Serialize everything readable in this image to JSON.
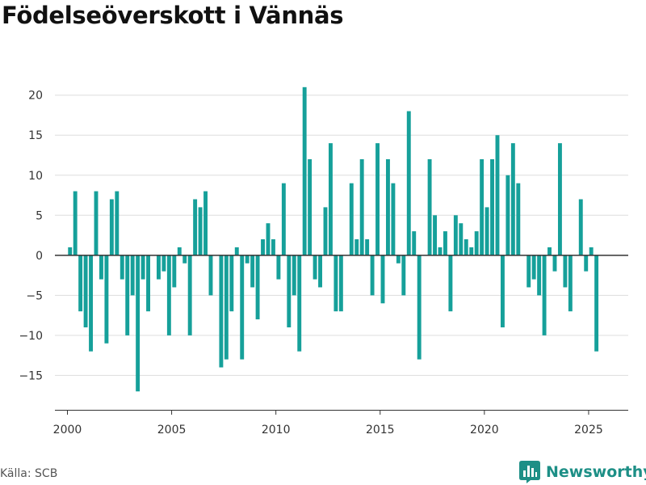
{
  "title": "Födelseöverskott i Vännäs",
  "source": "Källa: SCB",
  "brand": {
    "name": "Newsworthy",
    "logo_icon": "bar-chart-logo-icon"
  },
  "colors": {
    "bar": "#16a09a",
    "grid": "#dddddd",
    "zero": "#333333",
    "axis": "#333333",
    "brand": "#1d8f86"
  },
  "chart_data": {
    "type": "bar",
    "xlim": [
      1999.4,
      2026.9
    ],
    "ylim": [
      -19.3,
      23
    ],
    "xticks": [
      2000,
      2005,
      2010,
      2015,
      2020,
      2025
    ],
    "yticks": [
      -15,
      -10,
      -5,
      0,
      5,
      10,
      15,
      20
    ],
    "grid": true,
    "bar_width_years": 0.19,
    "x": [
      2000.125,
      2000.375,
      2000.625,
      2000.875,
      2001.125,
      2001.375,
      2001.625,
      2001.875,
      2002.125,
      2002.375,
      2002.625,
      2002.875,
      2003.125,
      2003.375,
      2003.625,
      2003.875,
      2004.125,
      2004.375,
      2004.625,
      2004.875,
      2005.125,
      2005.375,
      2005.625,
      2005.875,
      2006.125,
      2006.375,
      2006.625,
      2006.875,
      2007.125,
      2007.375,
      2007.625,
      2007.875,
      2008.125,
      2008.375,
      2008.625,
      2008.875,
      2009.125,
      2009.375,
      2009.625,
      2009.875,
      2010.125,
      2010.375,
      2010.625,
      2010.875,
      2011.125,
      2011.375,
      2011.625,
      2011.875,
      2012.125,
      2012.375,
      2012.625,
      2012.875,
      2013.125,
      2013.375,
      2013.625,
      2013.875,
      2014.125,
      2014.375,
      2014.625,
      2014.875,
      2015.125,
      2015.375,
      2015.625,
      2015.875,
      2016.125,
      2016.375,
      2016.625,
      2016.875,
      2017.125,
      2017.375,
      2017.625,
      2017.875,
      2018.125,
      2018.375,
      2018.625,
      2018.875,
      2019.125,
      2019.375,
      2019.625,
      2019.875,
      2020.125,
      2020.375,
      2020.625,
      2020.875,
      2021.125,
      2021.375,
      2021.625,
      2021.875,
      2022.125,
      2022.375,
      2022.625,
      2022.875,
      2023.125,
      2023.375,
      2023.625,
      2023.875,
      2024.125,
      2024.375,
      2024.625,
      2024.875,
      2025.125,
      2025.375
    ],
    "values": [
      1,
      8,
      -7,
      -9,
      -12,
      8,
      -3,
      -11,
      7,
      8,
      -3,
      -10,
      -5,
      -17,
      -3,
      -7,
      0,
      -3,
      -2,
      -10,
      -4,
      1,
      -1,
      -10,
      7,
      6,
      8,
      -5,
      0,
      -14,
      -13,
      -7,
      1,
      -13,
      -1,
      -4,
      -8,
      2,
      4,
      2,
      -3,
      9,
      -9,
      -5,
      -12,
      21,
      12,
      -3,
      -4,
      6,
      14,
      -7,
      -7,
      0,
      9,
      2,
      12,
      2,
      -5,
      14,
      -6,
      12,
      9,
      -1,
      -5,
      18,
      3,
      -13,
      0,
      12,
      5,
      1,
      3,
      -7,
      5,
      4,
      2,
      1,
      3,
      12,
      6,
      12,
      15,
      -9,
      10,
      14,
      9,
      0,
      -4,
      -3,
      -5,
      -10,
      1,
      -2,
      14,
      -4,
      -7,
      0,
      7,
      -2,
      1,
      -12
    ]
  }
}
